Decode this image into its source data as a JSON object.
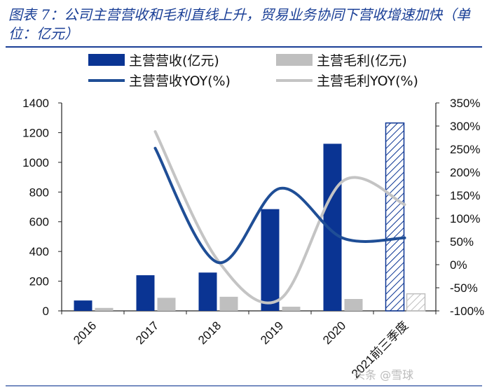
{
  "header": {
    "title": "图表 7：公司主营营收和毛利直线上升，贸易业务协同下营收增速加快（单位：亿元）"
  },
  "watermark": "头条 @雪球",
  "chart_data": {
    "type": "bar+line",
    "categories": [
      "2016",
      "2017",
      "2018",
      "2019",
      "2020",
      "2021前三季度"
    ],
    "series": [
      {
        "name": "主营营收(亿元)",
        "kind": "bar",
        "axis": "left",
        "color": "#0a3493",
        "values": [
          70,
          240,
          258,
          685,
          1125,
          1265
        ]
      },
      {
        "name": "主营毛利(亿元)",
        "kind": "bar",
        "axis": "left",
        "color": "#bfbfbf",
        "values": [
          20,
          88,
          95,
          28,
          80,
          115
        ]
      },
      {
        "name": "主营营收YOY(%)",
        "kind": "line",
        "axis": "right",
        "color": "#1f4e96",
        "values": [
          null,
          252,
          5,
          165,
          58,
          58
        ]
      },
      {
        "name": "主营毛利YOY(%)",
        "kind": "line",
        "axis": "right",
        "color": "#c4c4c4",
        "values": [
          null,
          288,
          10,
          -75,
          180,
          130
        ]
      }
    ],
    "hatched_category": "2021前三季度",
    "left_axis": {
      "min": 0,
      "max": 1400,
      "ticks": [
        0,
        200,
        400,
        600,
        800,
        1000,
        1200,
        1400
      ]
    },
    "right_axis": {
      "min": -100,
      "max": 350,
      "ticks": [
        -100,
        -50,
        0,
        50,
        100,
        150,
        200,
        250,
        300,
        350
      ],
      "tick_labels": [
        "-100%",
        "-50%",
        "0%",
        "50%",
        "100%",
        "150%",
        "200%",
        "250%",
        "300%",
        "350%"
      ]
    },
    "legend": [
      "主营营收(亿元)",
      "主营毛利(亿元)",
      "主营营收YOY(%)",
      "主营毛利YOY(%)"
    ],
    "legend_position": "top"
  }
}
